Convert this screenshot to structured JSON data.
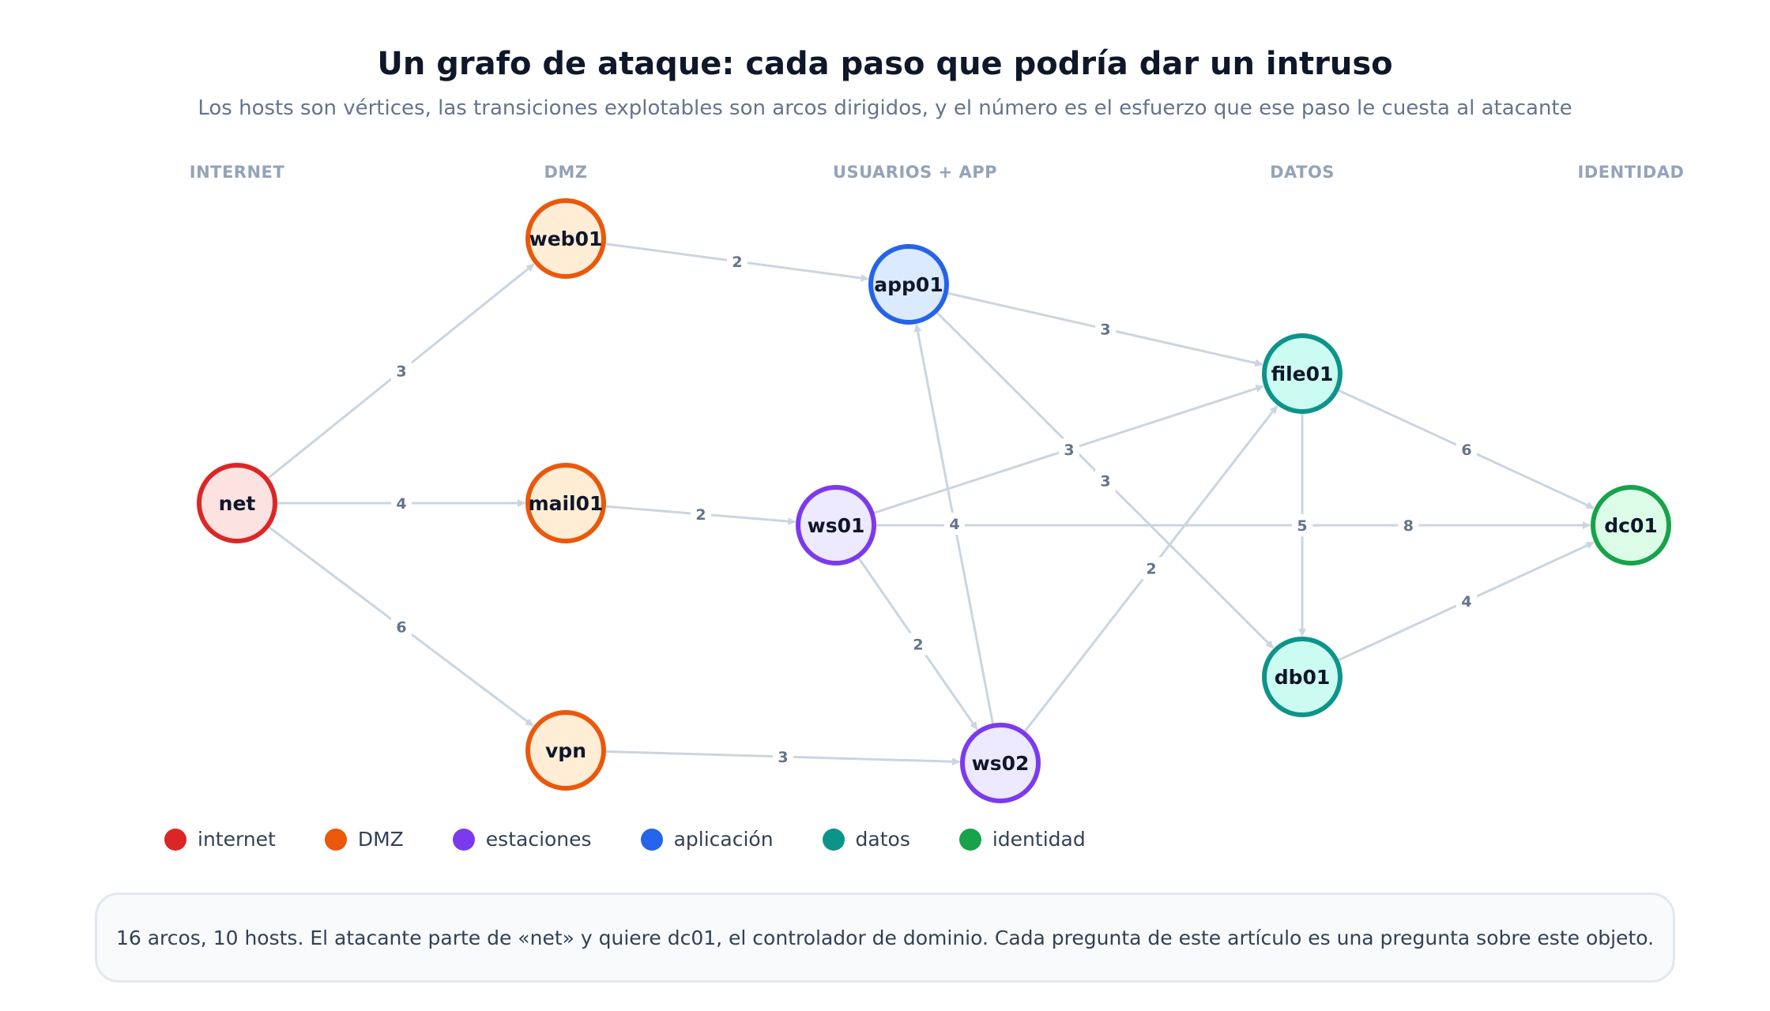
{
  "title": "Un grafo de ataque: cada paso que podría dar un intruso",
  "subtitle": "Los hosts son vértices, las transiciones explotables son arcos dirigidos, y el número es el esfuerzo que ese paso le cuesta al atacante",
  "columns": [
    "INTERNET",
    "DMZ",
    "USUARIOS + APP",
    "DATOS",
    "IDENTIDAD"
  ],
  "categories": {
    "internet": {
      "stroke": "#dc2626",
      "fill": "#fde2e2"
    },
    "dmz": {
      "stroke": "#ea580c",
      "fill": "#ffedd5"
    },
    "estaciones": {
      "stroke": "#7c3aed",
      "fill": "#ede9fe"
    },
    "aplicacion": {
      "stroke": "#2563eb",
      "fill": "#dbeafe"
    },
    "datos": {
      "stroke": "#0d9488",
      "fill": "#ccfbf1"
    },
    "identidad": {
      "stroke": "#16a34a",
      "fill": "#dcfce7"
    }
  },
  "nodes": [
    {
      "id": "net",
      "label": "net",
      "category": "internet"
    },
    {
      "id": "web01",
      "label": "web01",
      "category": "dmz"
    },
    {
      "id": "mail01",
      "label": "mail01",
      "category": "dmz"
    },
    {
      "id": "vpn",
      "label": "vpn",
      "category": "dmz"
    },
    {
      "id": "app01",
      "label": "app01",
      "category": "aplicacion"
    },
    {
      "id": "ws01",
      "label": "ws01",
      "category": "estaciones"
    },
    {
      "id": "ws02",
      "label": "ws02",
      "category": "estaciones"
    },
    {
      "id": "file01",
      "label": "file01",
      "category": "datos"
    },
    {
      "id": "db01",
      "label": "db01",
      "category": "datos"
    },
    {
      "id": "dc01",
      "label": "dc01",
      "category": "identidad"
    }
  ],
  "edges": [
    {
      "from": "net",
      "to": "web01",
      "weight": "3"
    },
    {
      "from": "net",
      "to": "mail01",
      "weight": "4"
    },
    {
      "from": "net",
      "to": "vpn",
      "weight": "6"
    },
    {
      "from": "web01",
      "to": "app01",
      "weight": "2"
    },
    {
      "from": "mail01",
      "to": "ws01",
      "weight": "2"
    },
    {
      "from": "vpn",
      "to": "ws02",
      "weight": "3"
    },
    {
      "from": "app01",
      "to": "file01",
      "weight": "3"
    },
    {
      "from": "app01",
      "to": "db01",
      "weight": "3"
    },
    {
      "from": "ws01",
      "to": "file01",
      "weight": "3"
    },
    {
      "from": "ws01",
      "to": "dc01",
      "weight": "8"
    },
    {
      "from": "ws01",
      "to": "ws02",
      "weight": "2"
    },
    {
      "from": "ws02",
      "to": "app01",
      "weight": "4"
    },
    {
      "from": "ws02",
      "to": "file01",
      "weight": "2"
    },
    {
      "from": "file01",
      "to": "db01",
      "weight": "5"
    },
    {
      "from": "file01",
      "to": "dc01",
      "weight": "6"
    },
    {
      "from": "db01",
      "to": "dc01",
      "weight": "4"
    }
  ],
  "legend": [
    {
      "label": "internet",
      "color": "#dc2626"
    },
    {
      "label": "DMZ",
      "color": "#ea580c"
    },
    {
      "label": "estaciones",
      "color": "#7c3aed"
    },
    {
      "label": "aplicación",
      "color": "#2563eb"
    },
    {
      "label": "datos",
      "color": "#0d9488"
    },
    {
      "label": "identidad",
      "color": "#16a34a"
    }
  ],
  "footer": "16 arcos, 10 hosts. El atacante parte de «net» y quiere dc01, el controlador de dominio. Cada pregunta de este artículo es una pregunta sobre este objeto."
}
